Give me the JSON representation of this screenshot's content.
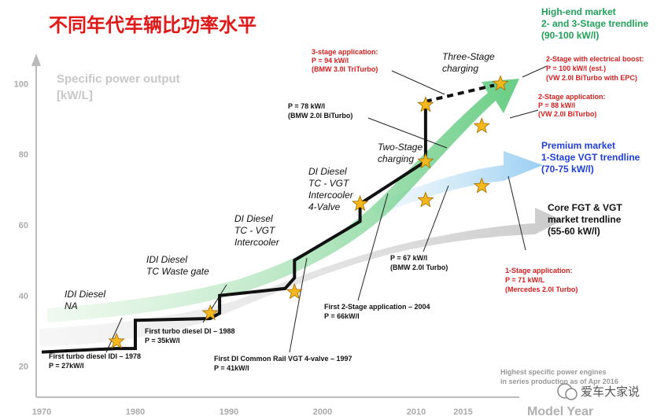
{
  "title": "不同年代车辆比功率水平",
  "watermark": "爱车大家说",
  "chart_data": {
    "type": "line",
    "ylabel_line1": "Specific power output",
    "ylabel_line2": "[kW/L]",
    "xlabel": "Model Year",
    "xlim": [
      1970,
      2020
    ],
    "ylim": [
      15,
      105
    ],
    "x_ticks": [
      "1970",
      "1980",
      "1990",
      "2000",
      "2010",
      "2015"
    ],
    "y_ticks": [
      "20",
      "40",
      "60",
      "80",
      "100"
    ],
    "grid": false,
    "series": [
      {
        "name": "",
        "color": "#111111",
        "points": [
          {
            "x": 1970,
            "y": 24
          },
          {
            "x": 1978,
            "y": 25
          },
          {
            "x": 1980,
            "y": 25
          },
          {
            "x": 1980,
            "y": 33
          },
          {
            "x": 1988,
            "y": 33.5
          },
          {
            "x": 1989,
            "y": 35
          },
          {
            "x": 1989,
            "y": 40
          },
          {
            "x": 1996,
            "y": 42
          },
          {
            "x": 1997,
            "y": 45
          },
          {
            "x": 1997,
            "y": 50
          },
          {
            "x": 2004,
            "y": 61
          },
          {
            "x": 2004,
            "y": 66
          },
          {
            "x": 2011,
            "y": 78
          },
          {
            "x": 2011,
            "y": 95
          }
        ]
      }
    ],
    "trend_bands": [
      {
        "label_lines": [
          "High-end market",
          "2- and 3-Stage trendline",
          "(90-100 kW/l)"
        ],
        "color": "#22a05a"
      },
      {
        "label_lines": [
          "Premium market",
          "1-Stage VGT trendline",
          "(70-75 kW/l)"
        ],
        "color": "#1f3fd8"
      },
      {
        "label_lines": [
          "Core FGT & VGT",
          "market trendline",
          "(55-60 kW/l)"
        ],
        "color": "#111111"
      }
    ],
    "stars": [
      {
        "x": 1978,
        "y": 27
      },
      {
        "x": 1988,
        "y": 35
      },
      {
        "x": 1997,
        "y": 41
      },
      {
        "x": 2004,
        "y": 66
      },
      {
        "x": 2011,
        "y": 78
      },
      {
        "x": 2011,
        "y": 94
      },
      {
        "x": 2011,
        "y": 67
      },
      {
        "x": 2017,
        "y": 88
      },
      {
        "x": 2019,
        "y": 100
      },
      {
        "x": 2017,
        "y": 71
      }
    ],
    "eras": [
      {
        "lines": [
          "IDI Diesel",
          "NA"
        ]
      },
      {
        "lines": [
          "IDI Diesel",
          "TC Waste gate"
        ]
      },
      {
        "lines": [
          "DI Diesel",
          "TC - VGT",
          "Intercooler"
        ]
      },
      {
        "lines": [
          "DI Diesel",
          "TC - VGT",
          "Intercooler",
          "4-Valve"
        ]
      },
      {
        "lines": [
          "Two-Stage",
          "charging"
        ]
      },
      {
        "lines": [
          "Three-Stage",
          "charging"
        ]
      }
    ],
    "annotations": [
      {
        "lines": [
          "First turbo diesel IDI – 1978",
          "P = 27kW/l"
        ],
        "color": "#111111"
      },
      {
        "lines": [
          "First turbo diesel DI – 1988",
          "P = 35kW/l"
        ],
        "color": "#111111"
      },
      {
        "lines": [
          "First DI Common Rail VGT 4-valve – 1997",
          "P = 41kW/l"
        ],
        "color": "#111111"
      },
      {
        "lines": [
          "First 2-Stage application – 2004",
          "P = 66kW/l"
        ],
        "color": "#111111"
      },
      {
        "lines": [
          "P = 67 kW/l",
          "(BMW 2.0l Turbo)"
        ],
        "color": "#111111"
      },
      {
        "lines": [
          "P = 78 kW/l",
          "(BMW 2.0l BiTurbo)"
        ],
        "color": "#111111"
      },
      {
        "lines": [
          "3-stage application:",
          "P = 94 kW/l",
          "(BMW 3.0l TriTurbo)"
        ],
        "color": "#d42020"
      },
      {
        "lines": [
          "2-Stage with electrical boost:",
          "P = 100 kW/l (est.)",
          "(VW 2.0l BiTurbo with EPC)"
        ],
        "color": "#d42020"
      },
      {
        "lines": [
          "2-Stage application:",
          "P = 88 kW/l",
          "(VW 2.0l BiTurbo)"
        ],
        "color": "#d42020"
      },
      {
        "lines": [
          "1-Stage application:",
          "P = 71 kW/L",
          "(Mercedes 2.0l Turbo)"
        ],
        "color": "#d42020"
      }
    ],
    "footnote_lines": [
      "Highest specific power engines",
      "in series production as of Apr 2016"
    ]
  }
}
